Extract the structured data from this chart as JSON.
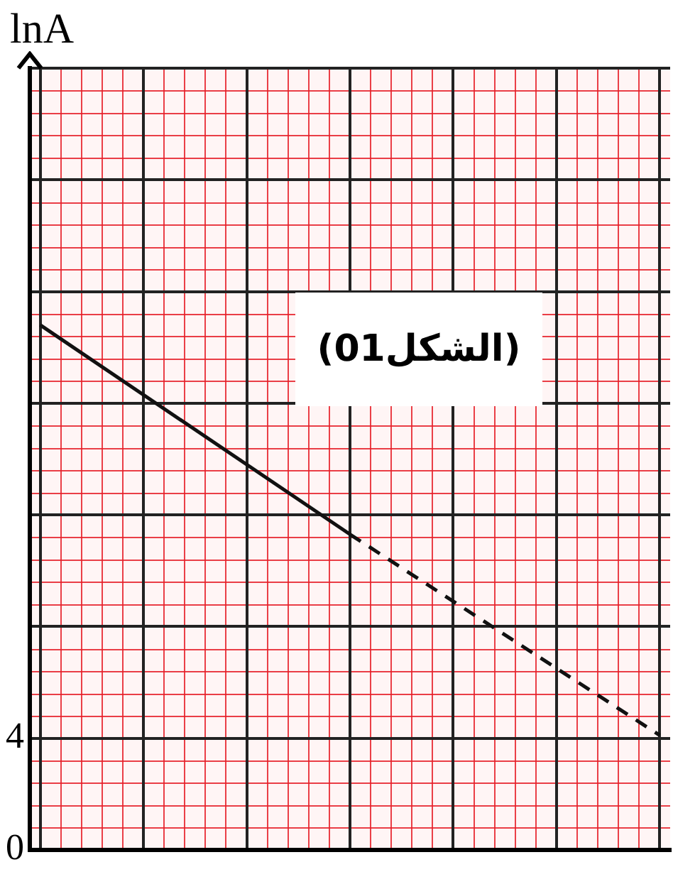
{
  "chart_data": {
    "type": "line",
    "ylabel": "lnA",
    "categories": [
      null,
      null,
      null,
      null,
      null,
      null,
      null,
      null,
      null,
      null,
      null,
      null,
      null,
      null,
      null,
      null,
      null,
      null,
      null,
      null,
      null,
      null,
      null,
      null,
      null,
      null,
      null,
      null,
      null,
      null,
      null
    ],
    "tick_labels": "y",
    "series": [
      {
        "color": "#111111",
        "line_style": "solid",
        "values": [
          18.8,
          null,
          null,
          null,
          null,
          null,
          null,
          null,
          null,
          null,
          null,
          null,
          null,
          null,
          null,
          11.3,
          null,
          null,
          null,
          null,
          null,
          null,
          null,
          null,
          null,
          null,
          null,
          null,
          null,
          null,
          null
        ]
      },
      {
        "color": "#111111",
        "line_style": "dashed",
        "values": [
          null,
          null,
          null,
          null,
          null,
          null,
          null,
          null,
          null,
          null,
          null,
          null,
          null,
          null,
          null,
          11.3,
          null,
          null,
          null,
          null,
          null,
          null,
          null,
          null,
          null,
          null,
          null,
          null,
          null,
          null,
          4.1
        ]
      }
    ],
    "ylim": [
      0,
      28
    ],
    "yticks": [
      {
        "value": 0,
        "label": "0"
      },
      4,
      {
        "value": 8,
        "label": null
      },
      {
        "value": 12,
        "label": null
      },
      {
        "value": 16,
        "label": null
      },
      {
        "value": 20,
        "label": null
      },
      {
        "value": 24,
        "label": null
      },
      {
        "value": 28,
        "label": null
      }
    ],
    "grid": true,
    "marker": "none",
    "annotations": [
      "(الشكل01)"
    ]
  }
}
